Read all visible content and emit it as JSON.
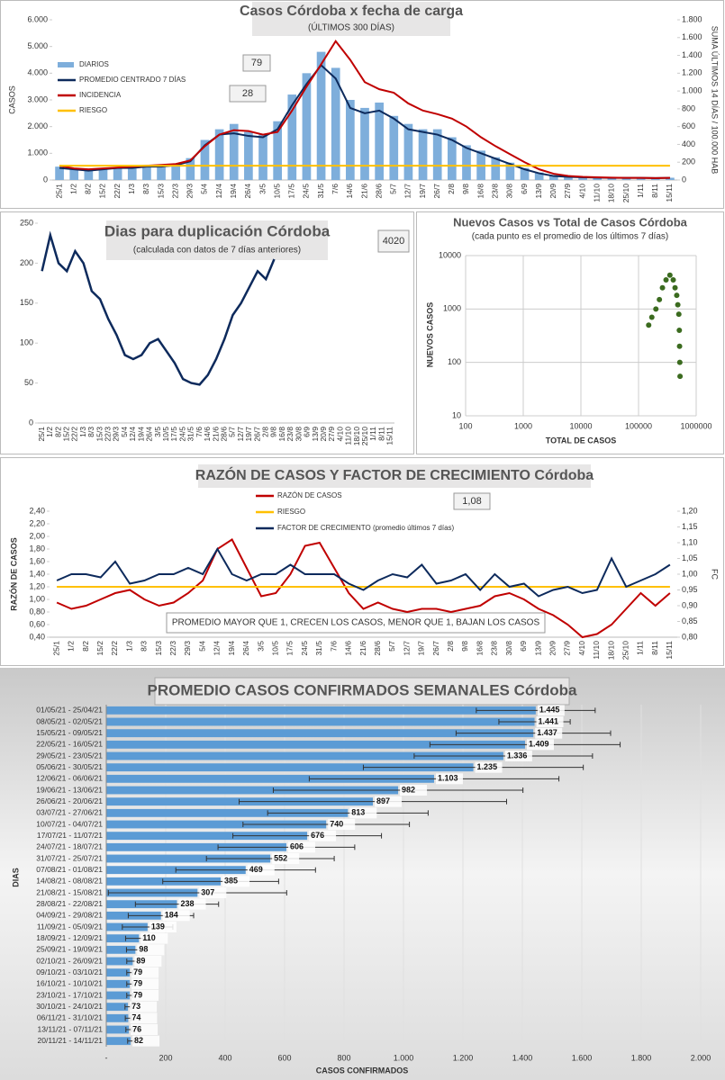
{
  "chart_data": [
    {
      "type": "bar",
      "title": "Casos Córdoba x fecha de carga",
      "subtitle": "(ÚLTIMOS 300 DÍAS)",
      "ylabel": "CASOS",
      "y2label": "SUMA ÚLTIMOS 14 DÍAS / 100.000 HAB",
      "annotations": [
        "79",
        "28"
      ],
      "legend": "top-left",
      "categories": [
        "25/1",
        "1/2",
        "8/2",
        "15/2",
        "22/2",
        "1/3",
        "8/3",
        "15/3",
        "22/3",
        "29/3",
        "5/4",
        "12/4",
        "19/4",
        "26/4",
        "3/5",
        "10/5",
        "17/5",
        "24/5",
        "31/5",
        "7/6",
        "14/6",
        "21/6",
        "28/6",
        "5/7",
        "12/7",
        "19/7",
        "26/7",
        "2/8",
        "9/8",
        "16/8",
        "23/8",
        "30/8",
        "6/9",
        "13/9",
        "20/9",
        "27/9",
        "4/10",
        "11/10",
        "18/10",
        "25/10",
        "1/11",
        "8/11",
        "15/11"
      ],
      "ylim": [
        0,
        6000
      ],
      "yticks": [
        0,
        {
          "value": 1000,
          "label": "1.000"
        },
        {
          "value": 2000,
          "label": "2.000"
        },
        {
          "value": 3000,
          "label": "3.000"
        },
        {
          "value": 4000,
          "label": "4.000"
        },
        {
          "value": 5000,
          "label": "5.000"
        },
        {
          "value": 6000,
          "label": "6.000"
        }
      ],
      "y2lim": [
        0,
        1800
      ],
      "y2ticks": [
        0,
        200,
        400,
        600,
        800,
        {
          "value": 1000,
          "label": "1.000"
        },
        {
          "value": 1200,
          "label": "1.200"
        },
        {
          "value": 1400,
          "label": "1.400"
        },
        {
          "value": 1600,
          "label": "1.600"
        },
        {
          "value": 1800,
          "label": "1.800"
        }
      ],
      "series": [
        {
          "name": "DIARIOS",
          "color": "#7eaedb",
          "values": [
            500,
            450,
            380,
            420,
            480,
            430,
            560,
            480,
            600,
            820,
            1500,
            1900,
            2100,
            1800,
            1700,
            2200,
            3200,
            4000,
            4800,
            4200,
            3000,
            2700,
            2900,
            2400,
            2100,
            1900,
            1900,
            1600,
            1300,
            1100,
            850,
            650,
            450,
            280,
            170,
            130,
            110,
            100,
            90,
            85,
            90,
            75,
            85
          ]
        },
        {
          "name": "PROMEDIO CENTRADO 7 DÍAS",
          "color": "#0d2a5c",
          "type": "line",
          "values": [
            450,
            400,
            350,
            400,
            450,
            450,
            500,
            500,
            550,
            700,
            1300,
            1700,
            1750,
            1650,
            1600,
            1900,
            2800,
            3600,
            4300,
            3800,
            2700,
            2500,
            2600,
            2300,
            1900,
            1800,
            1700,
            1500,
            1200,
            1000,
            800,
            600,
            400,
            250,
            150,
            120,
            100,
            90,
            80,
            80,
            80,
            70,
            80
          ]
        },
        {
          "name": "INCIDENCIA",
          "color": "#c00000",
          "type": "line",
          "axis": "y2",
          "values": [
            160,
            130,
            120,
            130,
            140,
            150,
            160,
            170,
            180,
            220,
            380,
            510,
            560,
            550,
            510,
            540,
            780,
            1050,
            1300,
            1560,
            1350,
            1100,
            1020,
            980,
            860,
            780,
            740,
            690,
            600,
            480,
            380,
            290,
            200,
            120,
            70,
            45,
            35,
            30,
            26,
            24,
            24,
            22,
            24
          ]
        },
        {
          "name": "RIESGO",
          "color": "#ffc000",
          "type": "line",
          "axis": "y2",
          "values": [
            160,
            160,
            160,
            160,
            160,
            160,
            160,
            160,
            160,
            160,
            160,
            160,
            160,
            160,
            160,
            160,
            160,
            160,
            160,
            160,
            160,
            160,
            160,
            160,
            160,
            160,
            160,
            160,
            160,
            160,
            160,
            160,
            160,
            160,
            160,
            160,
            160,
            160,
            160,
            160,
            160,
            160,
            160
          ]
        }
      ]
    },
    {
      "type": "line",
      "title": "Dias para duplicación Córdoba",
      "subtitle": "(calculada con datos de 7 días anteriores)",
      "annotations": [
        "4020"
      ],
      "categories": [
        "25/1",
        "1/2",
        "8/2",
        "15/2",
        "22/2",
        "1/3",
        "8/3",
        "15/3",
        "22/3",
        "29/3",
        "5/4",
        "12/4",
        "19/4",
        "26/4",
        "3/5",
        "10/5",
        "17/5",
        "24/5",
        "31/5",
        "7/6",
        "14/6",
        "21/6",
        "28/6",
        "5/7",
        "12/7",
        "19/7",
        "26/7",
        "2/8",
        "9/8",
        "16/8",
        "23/8",
        "30/8",
        "6/9",
        "13/9",
        "20/9",
        "27/9",
        "4/10",
        "11/10",
        "18/10",
        "25/10",
        "1/11",
        "8/11",
        "15/11"
      ],
      "ylim": [
        0,
        250
      ],
      "yticks": [
        0,
        50,
        100,
        150,
        200,
        250
      ],
      "series": [
        {
          "color": "#0d2a5c",
          "values": [
            190,
            235,
            200,
            190,
            215,
            200,
            165,
            155,
            130,
            110,
            85,
            80,
            85,
            100,
            105,
            90,
            75,
            55,
            50,
            48,
            60,
            80,
            105,
            135,
            150,
            170,
            190,
            180,
            205,
            null,
            null,
            null,
            null,
            null,
            null,
            null,
            null,
            null,
            null,
            null,
            null,
            null,
            null
          ]
        }
      ]
    },
    {
      "type": "scatter",
      "title": "Nuevos Casos vs Total de Casos Córdoba",
      "subtitle": "(cada punto es el promedio de los últimos 7 días)",
      "xlabel": "TOTAL DE CASOS",
      "ylabel": "NUEVOS CASOS",
      "xscale": "log",
      "yscale": "log",
      "grid": true,
      "xlim": [
        100,
        1000000
      ],
      "xticks": [
        100,
        1000,
        10000,
        100000,
        1000000
      ],
      "ylim": [
        10,
        10000
      ],
      "yticks": [
        10,
        100,
        1000,
        10000
      ],
      "color": "#3b6b1f",
      "x": [
        150000,
        170000,
        200000,
        230000,
        260000,
        300000,
        350000,
        400000,
        430000,
        460000,
        480000,
        500000,
        510000,
        515000,
        520000,
        525000
      ],
      "y": [
        500,
        700,
        1000,
        1500,
        2500,
        3500,
        4300,
        3500,
        2500,
        1800,
        1200,
        800,
        400,
        200,
        100,
        55
      ]
    },
    {
      "type": "line",
      "title": "RAZÓN DE CASOS Y FACTOR DE CRECIMIENTO Córdoba",
      "ylabel": "RAZÓN DE CASOS",
      "y2label": "FC",
      "annotations": [
        "1,08",
        "PROMEDIO MAYOR QUE 1, CRECEN LOS CASOS, MENOR QUE 1, BAJAN LOS CASOS"
      ],
      "legend": "top",
      "categories": [
        "25/1",
        "1/2",
        "8/2",
        "15/2",
        "22/2",
        "1/3",
        "8/3",
        "15/3",
        "22/3",
        "29/3",
        "5/4",
        "12/4",
        "19/4",
        "26/4",
        "3/5",
        "10/5",
        "17/5",
        "24/5",
        "31/5",
        "7/6",
        "14/6",
        "21/6",
        "28/6",
        "5/7",
        "12/7",
        "19/7",
        "26/7",
        "2/8",
        "9/8",
        "16/8",
        "23/8",
        "30/8",
        "6/9",
        "13/9",
        "20/9",
        "27/9",
        "4/10",
        "11/10",
        "18/10",
        "25/10",
        "1/11",
        "8/11",
        "15/11"
      ],
      "ylim": [
        0.4,
        2.4
      ],
      "yticks": [
        {
          "value": 0.4,
          "label": "0,40"
        },
        {
          "value": 0.6,
          "label": "0,60"
        },
        {
          "value": 0.8,
          "label": "0,80"
        },
        {
          "value": 1,
          "label": "1,00"
        },
        {
          "value": 1.2,
          "label": "1,20"
        },
        {
          "value": 1.4,
          "label": "1,40"
        },
        {
          "value": 1.6,
          "label": "1,60"
        },
        {
          "value": 1.8,
          "label": "1,80"
        },
        {
          "value": 2,
          "label": "2,00"
        },
        {
          "value": 2.2,
          "label": "2,20"
        },
        {
          "value": 2.4,
          "label": "2,40"
        }
      ],
      "y2lim": [
        0.8,
        1.2
      ],
      "y2ticks": [
        {
          "value": 0.8,
          "label": "0,80"
        },
        {
          "value": 0.85,
          "label": "0,85"
        },
        {
          "value": 0.9,
          "label": "0,90"
        },
        {
          "value": 0.95,
          "label": "0,95"
        },
        {
          "value": 1,
          "label": "1,00"
        },
        {
          "value": 1.05,
          "label": "1,05"
        },
        {
          "value": 1.1,
          "label": "1,10"
        },
        {
          "value": 1.15,
          "label": "1,15"
        },
        {
          "value": 1.2,
          "label": "1,20"
        }
      ],
      "series": [
        {
          "name": "RAZÓN DE CASOS",
          "color": "#c00000",
          "values": [
            0.95,
            0.85,
            0.9,
            1.0,
            1.1,
            1.15,
            1.0,
            0.9,
            0.95,
            1.1,
            1.3,
            1.8,
            1.95,
            1.5,
            1.05,
            1.1,
            1.4,
            1.85,
            1.9,
            1.5,
            1.1,
            0.85,
            0.95,
            0.85,
            0.8,
            0.85,
            0.85,
            0.8,
            0.85,
            0.9,
            1.05,
            1.1,
            1.0,
            0.85,
            0.75,
            0.6,
            0.4,
            0.45,
            0.6,
            0.85,
            1.1,
            0.9,
            1.1
          ]
        },
        {
          "name": "RIESGO",
          "color": "#ffc000",
          "values": [
            1.2,
            1.2,
            1.2,
            1.2,
            1.2,
            1.2,
            1.2,
            1.2,
            1.2,
            1.2,
            1.2,
            1.2,
            1.2,
            1.2,
            1.2,
            1.2,
            1.2,
            1.2,
            1.2,
            1.2,
            1.2,
            1.2,
            1.2,
            1.2,
            1.2,
            1.2,
            1.2,
            1.2,
            1.2,
            1.2,
            1.2,
            1.2,
            1.2,
            1.2,
            1.2,
            1.2,
            1.2,
            1.2,
            1.2,
            1.2,
            1.2,
            1.2,
            1.2
          ]
        },
        {
          "name": "FACTOR DE CRECIMIENTO (promedio últimos 7 días)",
          "color": "#0d2a5c",
          "axis": "y2",
          "values": [
            0.98,
            1.0,
            1.0,
            0.99,
            1.04,
            0.97,
            0.98,
            1.0,
            1.0,
            1.02,
            1.0,
            1.08,
            1.0,
            0.98,
            1.0,
            1.0,
            1.03,
            1.0,
            1.0,
            1.0,
            0.97,
            0.95,
            0.98,
            1.0,
            0.99,
            1.03,
            0.97,
            0.98,
            1.0,
            0.95,
            1.0,
            0.96,
            0.97,
            0.93,
            0.95,
            0.96,
            0.94,
            0.95,
            1.05,
            0.96,
            0.98,
            1.0,
            1.03
          ]
        }
      ]
    },
    {
      "type": "bar",
      "orientation": "horizontal",
      "title": "PROMEDIO CASOS CONFIRMADOS SEMANALES Córdoba",
      "xlabel": "CASOS CONFIRMADOS",
      "ylabel": "DIAS",
      "grid": true,
      "color": "#5b9bd5",
      "categories": [
        "01/05/21 - 25/04/21",
        "08/05/21 - 02/05/21",
        "15/05/21 - 09/05/21",
        "22/05/21 - 16/05/21",
        "29/05/21 - 23/05/21",
        "05/06/21 - 30/05/21",
        "12/06/21 - 06/06/21",
        "19/06/21 - 13/06/21",
        "26/06/21 - 20/06/21",
        "03/07/21 - 27/06/21",
        "10/07/21 - 04/07/21",
        "17/07/21 - 11/07/21",
        "24/07/21 - 18/07/21",
        "31/07/21 - 25/07/21",
        "07/08/21 - 01/08/21",
        "14/08/21 - 08/08/21",
        "21/08/21 - 15/08/21",
        "28/08/21 - 22/08/21",
        "04/09/21 - 29/08/21",
        "11/09/21 - 05/09/21",
        "18/09/21 - 12/09/21",
        "25/09/21 - 19/09/21",
        "02/10/21 - 26/09/21",
        "09/10/21 - 03/10/21",
        "16/10/21 - 10/10/21",
        "23/10/21 - 17/10/21",
        "30/10/21 - 24/10/21",
        "06/11/21 - 31/10/21",
        "13/11/21 - 07/11/21",
        "20/11/21 - 14/11/21"
      ],
      "values": [
        1445,
        1441,
        1437,
        1409,
        1336,
        1235,
        1103,
        982,
        897,
        813,
        740,
        676,
        606,
        552,
        469,
        385,
        307,
        238,
        184,
        139,
        110,
        98,
        89,
        79,
        79,
        79,
        73,
        74,
        76,
        82
      ],
      "value_labels": [
        "1.445",
        "1.441",
        "1.437",
        "1.409",
        "1.336",
        "1.235",
        "1.103",
        "982",
        "897",
        "813",
        "740",
        "676",
        "606",
        "552",
        "469",
        "385",
        "307",
        "238",
        "184",
        "139",
        "110",
        "98",
        "89",
        "79",
        "79",
        "79",
        "73",
        "74",
        "76",
        "82"
      ],
      "errors": [
        200,
        120,
        260,
        320,
        300,
        370,
        420,
        420,
        450,
        270,
        280,
        250,
        230,
        215,
        235,
        195,
        300,
        140,
        110,
        85,
        45,
        30,
        20,
        10,
        10,
        10,
        10,
        10,
        10,
        10
      ],
      "xlim": [
        0,
        2000
      ],
      "xticks": [
        {
          "value": 0,
          "label": "-"
        },
        200,
        400,
        600,
        800,
        {
          "value": 1000,
          "label": "1.000"
        },
        {
          "value": 1200,
          "label": "1.200"
        },
        {
          "value": 1400,
          "label": "1.400"
        },
        {
          "value": 1600,
          "label": "1.600"
        },
        {
          "value": 1800,
          "label": "1.800"
        },
        {
          "value": 2000,
          "label": "2.000"
        }
      ]
    }
  ]
}
